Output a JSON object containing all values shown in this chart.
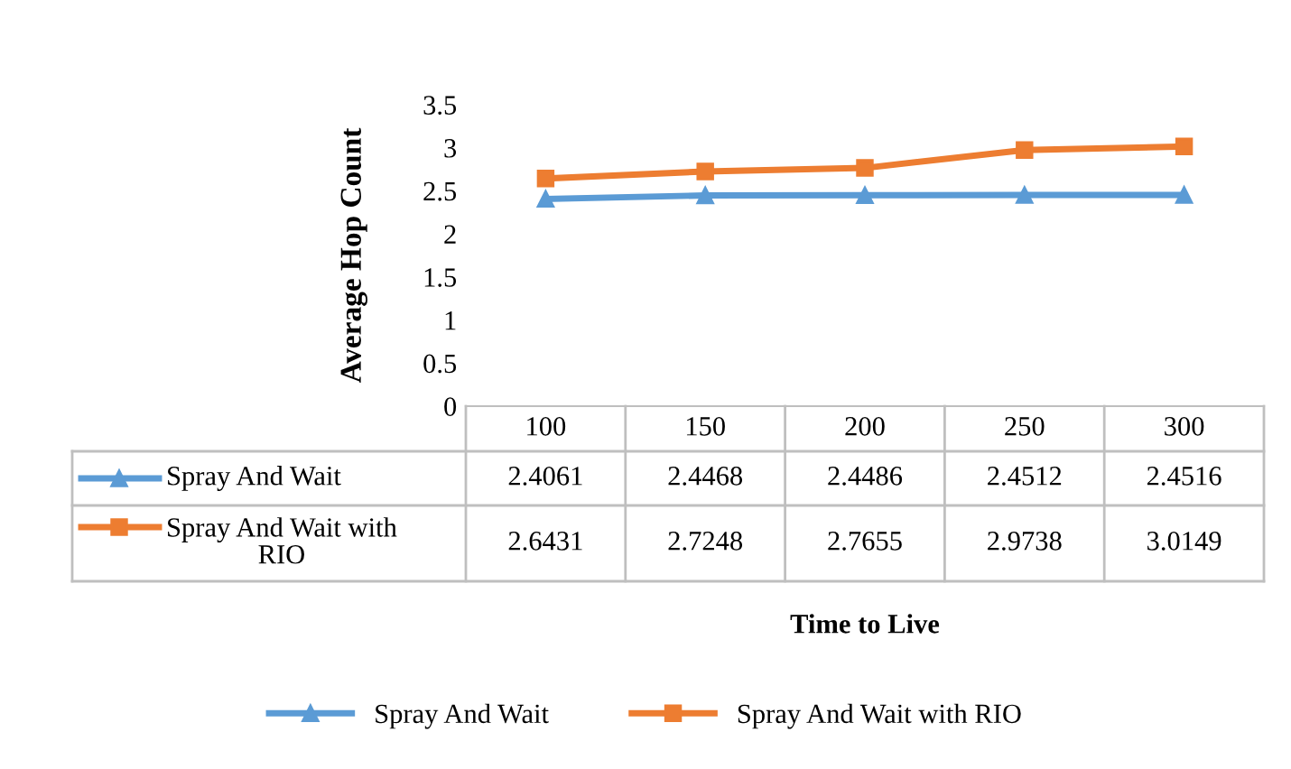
{
  "chart_data": {
    "type": "line",
    "annotations": [
      "Time to Live"
    ],
    "ylabel": "Average Hop Count",
    "categories": [
      "100",
      "150",
      "200",
      "250",
      "300"
    ],
    "series": [
      {
        "name": "Spray And Wait",
        "color": "#5b9bd5",
        "marker": "triangle",
        "values": [
          2.4061,
          2.4468,
          2.4486,
          2.4512,
          2.4516
        ]
      },
      {
        "name": "Spray And Wait with RIO",
        "color": "#ed7d31",
        "marker": "square",
        "values": [
          2.6431,
          2.7248,
          2.7655,
          2.9738,
          3.0149
        ]
      }
    ],
    "ylim": [
      0,
      3.5
    ],
    "yticks": [
      0,
      0.5,
      1,
      1.5,
      2,
      2.5,
      3,
      3.5
    ],
    "grid": false,
    "legend": "bottom",
    "data_labels": true,
    "line_style": "solid"
  }
}
